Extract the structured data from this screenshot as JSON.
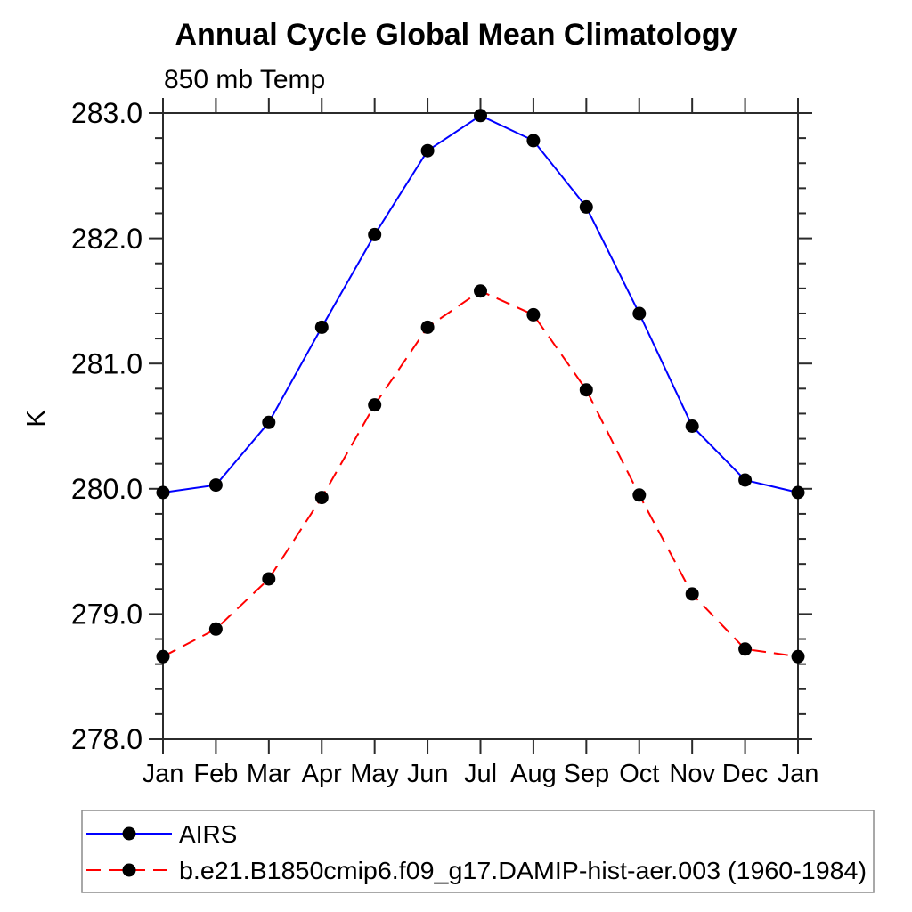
{
  "page": {
    "background": "#ffffff"
  },
  "chart_data": {
    "type": "line",
    "title": "Annual Cycle Global Mean Climatology",
    "subtitle": "850 mb Temp",
    "xlabel": "",
    "ylabel": "K",
    "ylim": [
      278.0,
      283.0
    ],
    "ytick_labels": [
      "278.0",
      "279.0",
      "280.0",
      "281.0",
      "282.0",
      "283.0"
    ],
    "y_minor_step": 0.2,
    "grid": false,
    "legend_position": "bottom-left",
    "axis_color": "#2b2b2b",
    "marker_color": "#000000",
    "categories": [
      "Jan",
      "Feb",
      "Mar",
      "Apr",
      "May",
      "Jun",
      "Jul",
      "Aug",
      "Sep",
      "Oct",
      "Nov",
      "Dec",
      "Jan"
    ],
    "series": [
      {
        "name": "AIRS",
        "color": "#0000ff",
        "line_style": "solid",
        "marker": "filled-circle",
        "values": [
          279.97,
          280.03,
          280.53,
          281.29,
          282.03,
          282.7,
          282.98,
          282.78,
          282.25,
          281.4,
          280.5,
          280.07,
          279.97
        ]
      },
      {
        "name": "b.e21.B1850cmip6.f09_g17.DAMIP-hist-aer.003 (1960-1984)",
        "color": "#ff0000",
        "line_style": "dashed",
        "marker": "filled-circle",
        "values": [
          278.66,
          278.88,
          279.28,
          279.93,
          280.67,
          281.29,
          281.58,
          281.39,
          280.79,
          279.95,
          279.16,
          278.72,
          278.66
        ]
      }
    ]
  }
}
